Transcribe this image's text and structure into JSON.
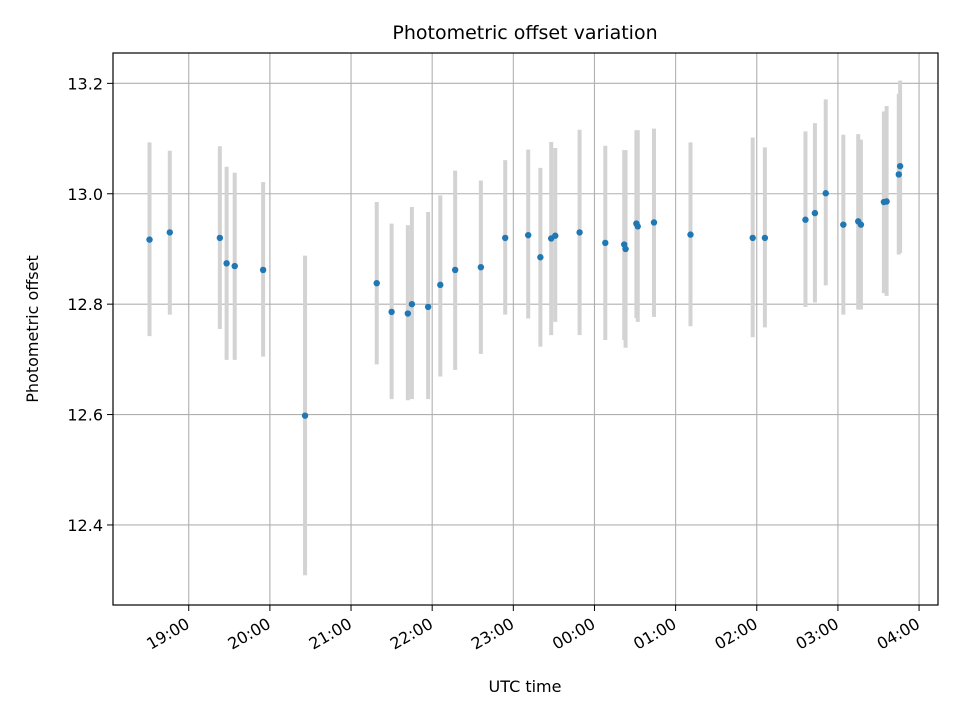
{
  "chart_data": {
    "type": "scatter",
    "title": "Photometric offset variation",
    "xlabel": "UTC time",
    "ylabel": "Photometric offset",
    "x_unit": "hours (UTC, continuing past midnight)",
    "xlim": [
      "18:04",
      "04:14"
    ],
    "ylim": [
      12.255,
      13.255
    ],
    "xticks": [
      "19:00",
      "20:00",
      "21:00",
      "22:00",
      "23:00",
      "00:00",
      "01:00",
      "02:00",
      "03:00",
      "04:00"
    ],
    "yticks": [
      "12.4",
      "12.6",
      "12.8",
      "13.0",
      "13.2"
    ],
    "grid": true,
    "marker_color": "#1f77b4",
    "errorbar_color": "#d3d3d3",
    "points": [
      {
        "t": "18:31",
        "y": 12.917,
        "lo": 12.742,
        "hi": 13.093
      },
      {
        "t": "18:46",
        "y": 12.93,
        "lo": 12.781,
        "hi": 13.078
      },
      {
        "t": "19:23",
        "y": 12.92,
        "lo": 12.755,
        "hi": 13.086
      },
      {
        "t": "19:28",
        "y": 12.874,
        "lo": 12.699,
        "hi": 13.049
      },
      {
        "t": "19:34",
        "y": 12.869,
        "lo": 12.699,
        "hi": 13.038
      },
      {
        "t": "19:55",
        "y": 12.862,
        "lo": 12.705,
        "hi": 13.021
      },
      {
        "t": "20:26",
        "y": 12.598,
        "lo": 12.309,
        "hi": 12.888
      },
      {
        "t": "21:19",
        "y": 12.838,
        "lo": 12.691,
        "hi": 12.985
      },
      {
        "t": "21:30",
        "y": 12.786,
        "lo": 12.628,
        "hi": 12.946
      },
      {
        "t": "21:42",
        "y": 12.783,
        "lo": 12.626,
        "hi": 12.943
      },
      {
        "t": "21:45",
        "y": 12.8,
        "lo": 12.628,
        "hi": 12.976
      },
      {
        "t": "21:57",
        "y": 12.795,
        "lo": 12.628,
        "hi": 12.967
      },
      {
        "t": "22:06",
        "y": 12.835,
        "lo": 12.669,
        "hi": 12.997
      },
      {
        "t": "22:17",
        "y": 12.862,
        "lo": 12.681,
        "hi": 13.042
      },
      {
        "t": "22:36",
        "y": 12.867,
        "lo": 12.71,
        "hi": 13.024
      },
      {
        "t": "22:54",
        "y": 12.92,
        "lo": 12.781,
        "hi": 13.061
      },
      {
        "t": "23:11",
        "y": 12.925,
        "lo": 12.774,
        "hi": 13.08
      },
      {
        "t": "23:20",
        "y": 12.885,
        "lo": 12.723,
        "hi": 13.047
      },
      {
        "t": "23:28",
        "y": 12.919,
        "lo": 12.744,
        "hi": 13.094
      },
      {
        "t": "23:31",
        "y": 12.924,
        "lo": 12.768,
        "hi": 13.083
      },
      {
        "t": "23:49",
        "y": 12.93,
        "lo": 12.744,
        "hi": 13.116
      },
      {
        "t": "00:08",
        "y": 12.911,
        "lo": 12.735,
        "hi": 13.087
      },
      {
        "t": "00:22",
        "y": 12.908,
        "lo": 12.735,
        "hi": 13.079
      },
      {
        "t": "00:23",
        "y": 12.9,
        "lo": 12.721,
        "hi": 13.079
      },
      {
        "t": "00:31",
        "y": 12.946,
        "lo": 12.775,
        "hi": 13.115
      },
      {
        "t": "00:32",
        "y": 12.941,
        "lo": 12.768,
        "hi": 13.115
      },
      {
        "t": "00:44",
        "y": 12.948,
        "lo": 12.777,
        "hi": 13.118
      },
      {
        "t": "01:11",
        "y": 12.926,
        "lo": 12.76,
        "hi": 13.093
      },
      {
        "t": "01:57",
        "y": 12.92,
        "lo": 12.74,
        "hi": 13.102
      },
      {
        "t": "02:06",
        "y": 12.92,
        "lo": 12.758,
        "hi": 13.084
      },
      {
        "t": "02:36",
        "y": 12.953,
        "lo": 12.795,
        "hi": 13.113
      },
      {
        "t": "02:43",
        "y": 12.965,
        "lo": 12.803,
        "hi": 13.128
      },
      {
        "t": "02:51",
        "y": 13.001,
        "lo": 12.834,
        "hi": 13.171
      },
      {
        "t": "03:04",
        "y": 12.944,
        "lo": 12.781,
        "hi": 13.107
      },
      {
        "t": "03:15",
        "y": 12.95,
        "lo": 12.79,
        "hi": 13.108
      },
      {
        "t": "03:17",
        "y": 12.944,
        "lo": 12.79,
        "hi": 13.098
      },
      {
        "t": "03:34",
        "y": 12.985,
        "lo": 12.82,
        "hi": 13.149
      },
      {
        "t": "03:36",
        "y": 12.986,
        "lo": 12.815,
        "hi": 13.159
      },
      {
        "t": "03:45",
        "y": 13.035,
        "lo": 12.89,
        "hi": 13.181
      },
      {
        "t": "03:46",
        "y": 13.05,
        "lo": 12.893,
        "hi": 13.205
      }
    ]
  }
}
